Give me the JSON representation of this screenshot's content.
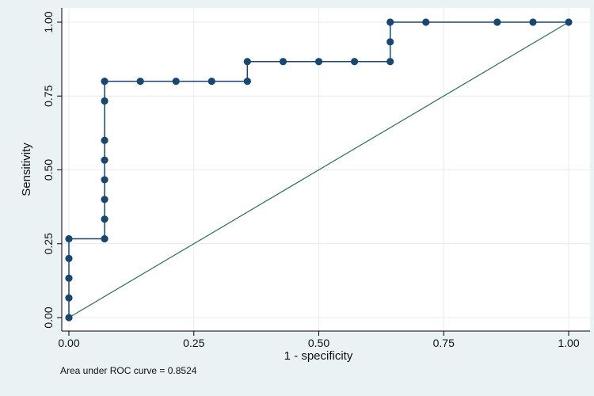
{
  "chart_data": {
    "type": "line",
    "xlabel": "1 - specificity",
    "ylabel": "Sensitivity",
    "xlim": [
      0,
      1
    ],
    "ylim": [
      0,
      1
    ],
    "xticks": [
      "0.00",
      "0.25",
      "0.50",
      "0.75",
      "1.00"
    ],
    "yticks": [
      "0.00",
      "0.25",
      "0.50",
      "0.75",
      "1.00"
    ],
    "grid": true,
    "note": "Area under ROC curve = 0.8524",
    "colors": {
      "background": "#eaf2f3",
      "plot_bg": "#ffffff",
      "curve": "#1a476f",
      "reference": "#2d6a55",
      "grid": "#e6ecee"
    },
    "series": [
      {
        "x": [
          0,
          0,
          0,
          0,
          0,
          0.0714,
          0.0714,
          0.0714,
          0.0714,
          0.0714,
          0.0714,
          0.0714,
          0.0714,
          0.1429,
          0.2143,
          0.2857,
          0.3571,
          0.3571,
          0.4286,
          0.5,
          0.5714,
          0.6429,
          0.6429,
          0.6429,
          0.7143,
          0.8571,
          0.9286,
          1.0
        ],
        "y": [
          0,
          0.0667,
          0.1333,
          0.2,
          0.2667,
          0.2667,
          0.3333,
          0.4,
          0.4667,
          0.5333,
          0.6,
          0.7333,
          0.8,
          0.8,
          0.8,
          0.8,
          0.8,
          0.8667,
          0.8667,
          0.8667,
          0.8667,
          0.8667,
          0.9333,
          1.0,
          1.0,
          1.0,
          1.0,
          1.0
        ]
      },
      {
        "x": [
          0,
          1
        ],
        "y": [
          0,
          1
        ]
      }
    ]
  }
}
